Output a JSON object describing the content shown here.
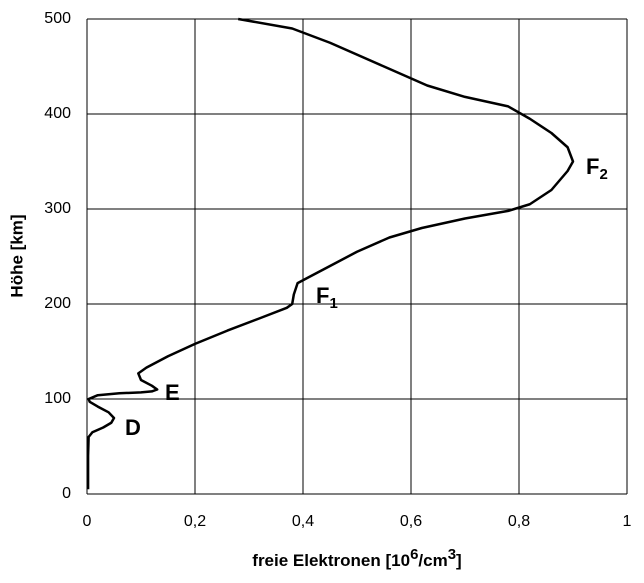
{
  "chart_data": {
    "type": "line",
    "xlabel": {
      "parts": [
        "freie Elektronen [10",
        "6",
        "/cm",
        "3",
        "]"
      ]
    },
    "ylabel": "Höhe [km]",
    "annotations": [
      {
        "text": "F",
        "sub": "2"
      },
      {
        "text": "F",
        "sub": "1"
      },
      {
        "text": "E"
      },
      {
        "text": "D"
      }
    ],
    "xlim": [
      0,
      1
    ],
    "ylim": [
      0,
      500
    ],
    "xticks": [
      0,
      {
        "value": 0.2,
        "label": "0,2"
      },
      {
        "value": 0.4,
        "label": "0,4"
      },
      {
        "value": 0.6,
        "label": "0,6"
      },
      {
        "value": 0.8,
        "label": "0,8"
      },
      1
    ],
    "yticks": [
      0,
      100,
      200,
      300,
      400,
      500
    ],
    "grid": true,
    "color": "#000000",
    "series": [
      {
        "color": "#000000",
        "x": [
          0.002,
          0.002,
          0.003,
          0.01,
          0.03,
          0.045,
          0.05,
          0.04,
          0.02,
          0.005,
          0.003,
          0.02,
          0.06,
          0.1,
          0.12,
          0.13,
          0.12,
          0.1,
          0.095,
          0.11,
          0.15,
          0.2,
          0.26,
          0.32,
          0.37,
          0.38,
          0.383,
          0.39,
          0.41,
          0.45,
          0.5,
          0.56,
          0.62,
          0.7,
          0.78,
          0.82,
          0.86,
          0.89,
          0.9,
          0.89,
          0.86,
          0.82,
          0.78,
          0.7,
          0.63,
          0.55,
          0.45,
          0.38,
          0.28
        ],
        "values": [
          5,
          40,
          60,
          65,
          70,
          75,
          80,
          86,
          92,
          97,
          100,
          104,
          106,
          107,
          108,
          110,
          114,
          120,
          127,
          133,
          145,
          158,
          172,
          185,
          196,
          200,
          210,
          222,
          228,
          240,
          255,
          270,
          280,
          290,
          298,
          305,
          320,
          340,
          350,
          365,
          380,
          395,
          408,
          418,
          430,
          450,
          475,
          490,
          500
        ]
      }
    ]
  }
}
